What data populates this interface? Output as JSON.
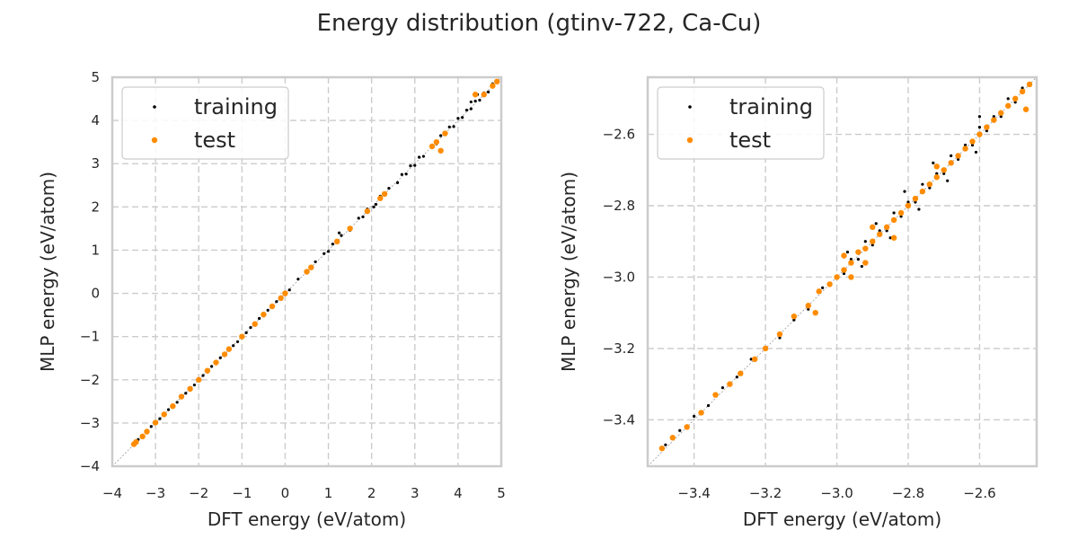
{
  "figure": {
    "title": "Energy distribution (gtinv-722, Ca-Cu)"
  },
  "chart_data": [
    {
      "type": "scatter",
      "xlabel": "DFT energy (eV/atom)",
      "ylabel": "MLP energy (eV/atom)",
      "xlim": [
        -4,
        5
      ],
      "ylim": [
        -4,
        5
      ],
      "xticks": [
        -4,
        -3,
        -2,
        -1,
        0,
        1,
        2,
        3,
        4,
        5
      ],
      "yticks": [
        -4,
        -3,
        -2,
        -1,
        0,
        1,
        2,
        3,
        4,
        5
      ],
      "xtick_labels": [
        "−4",
        "−3",
        "−2",
        "−1",
        "0",
        "1",
        "2",
        "3",
        "4",
        "5"
      ],
      "ytick_labels": [
        "−4",
        "−3",
        "−2",
        "−1",
        "0",
        "1",
        "2",
        "3",
        "4",
        "5"
      ],
      "grid": true,
      "diagonal_reference_line": true,
      "legend_position": "upper-left",
      "series": [
        {
          "name": "training",
          "color": "#000000",
          "points": [
            [
              -3.5,
              -3.48
            ],
            [
              -3.4,
              -3.38
            ],
            [
              -3.3,
              -3.29
            ],
            [
              -3.2,
              -3.19
            ],
            [
              -3.1,
              -3.08
            ],
            [
              -3.0,
              -3.0
            ],
            [
              -2.9,
              -2.9
            ],
            [
              -2.8,
              -2.81
            ],
            [
              -2.7,
              -2.69
            ],
            [
              -2.6,
              -2.6
            ],
            [
              -2.5,
              -2.52
            ],
            [
              -2.4,
              -2.38
            ],
            [
              -2.3,
              -2.31
            ],
            [
              -2.2,
              -2.19
            ],
            [
              -2.1,
              -2.12
            ],
            [
              -2.0,
              -1.98
            ],
            [
              -1.9,
              -1.9
            ],
            [
              -1.8,
              -1.82
            ],
            [
              -1.7,
              -1.69
            ],
            [
              -1.6,
              -1.61
            ],
            [
              -1.5,
              -1.49
            ],
            [
              -1.4,
              -1.42
            ],
            [
              -1.3,
              -1.29
            ],
            [
              -1.2,
              -1.21
            ],
            [
              -1.1,
              -1.12
            ],
            [
              -1.0,
              -0.98
            ],
            [
              -0.9,
              -0.91
            ],
            [
              -0.8,
              -0.79
            ],
            [
              -0.7,
              -0.72
            ],
            [
              -0.6,
              -0.58
            ],
            [
              -0.5,
              -0.52
            ],
            [
              -0.4,
              -0.39
            ],
            [
              -0.3,
              -0.31
            ],
            [
              -0.2,
              -0.19
            ],
            [
              -0.1,
              -0.12
            ],
            [
              0.0,
              0.02
            ],
            [
              0.1,
              0.08
            ],
            [
              0.3,
              0.33
            ],
            [
              0.5,
              0.48
            ],
            [
              0.7,
              0.73
            ],
            [
              0.9,
              0.92
            ],
            [
              1.0,
              0.97
            ],
            [
              1.1,
              1.14
            ],
            [
              1.2,
              1.17
            ],
            [
              1.3,
              1.34
            ],
            [
              1.5,
              1.46
            ],
            [
              1.7,
              1.74
            ],
            [
              1.8,
              1.77
            ],
            [
              1.9,
              1.95
            ],
            [
              2.1,
              2.06
            ],
            [
              2.2,
              2.25
            ],
            [
              2.3,
              2.27
            ],
            [
              2.4,
              2.43
            ],
            [
              2.6,
              2.56
            ],
            [
              2.7,
              2.75
            ],
            [
              2.8,
              2.76
            ],
            [
              2.9,
              2.95
            ],
            [
              3.0,
              2.96
            ],
            [
              3.1,
              3.15
            ],
            [
              3.2,
              3.17
            ],
            [
              3.4,
              3.43
            ],
            [
              3.5,
              3.46
            ],
            [
              3.6,
              3.65
            ],
            [
              3.7,
              3.67
            ],
            [
              3.8,
              3.85
            ],
            [
              3.9,
              3.86
            ],
            [
              4.0,
              4.05
            ],
            [
              4.1,
              4.07
            ],
            [
              4.2,
              4.24
            ],
            [
              4.3,
              4.27
            ],
            [
              4.4,
              4.45
            ],
            [
              4.5,
              4.47
            ],
            [
              4.6,
              4.64
            ],
            [
              4.7,
              4.66
            ],
            [
              4.8,
              4.85
            ],
            [
              4.9,
              4.88
            ],
            [
              4.45,
              4.6
            ],
            [
              4.3,
              4.43
            ],
            [
              2.05,
              2.0
            ],
            [
              1.25,
              1.4
            ]
          ]
        },
        {
          "name": "test",
          "color": "#ff8c00",
          "points": [
            [
              -3.5,
              -3.49
            ],
            [
              -3.45,
              -3.44
            ],
            [
              -3.3,
              -3.31
            ],
            [
              -3.2,
              -3.2
            ],
            [
              -3.0,
              -2.99
            ],
            [
              -2.8,
              -2.8
            ],
            [
              -2.6,
              -2.61
            ],
            [
              -2.4,
              -2.39
            ],
            [
              -2.2,
              -2.21
            ],
            [
              -2.0,
              -2.0
            ],
            [
              -1.8,
              -1.79
            ],
            [
              -1.6,
              -1.6
            ],
            [
              -1.4,
              -1.41
            ],
            [
              -1.3,
              -1.29
            ],
            [
              -1.0,
              -1.0
            ],
            [
              -0.7,
              -0.71
            ],
            [
              -0.5,
              -0.49
            ],
            [
              -0.3,
              -0.3
            ],
            [
              -0.1,
              -0.11
            ],
            [
              0.0,
              0.0
            ],
            [
              0.5,
              0.5
            ],
            [
              0.6,
              0.6
            ],
            [
              1.2,
              1.2
            ],
            [
              1.5,
              1.5
            ],
            [
              1.9,
              1.9
            ],
            [
              2.2,
              2.2
            ],
            [
              2.3,
              2.3
            ],
            [
              3.4,
              3.4
            ],
            [
              3.5,
              3.5
            ],
            [
              3.6,
              3.3
            ],
            [
              3.7,
              3.7
            ],
            [
              4.4,
              4.6
            ],
            [
              4.6,
              4.6
            ],
            [
              4.8,
              4.8
            ],
            [
              4.9,
              4.9
            ]
          ]
        }
      ]
    },
    {
      "type": "scatter",
      "xlabel": "DFT energy (eV/atom)",
      "ylabel": "MLP energy (eV/atom)",
      "xlim": [
        -3.53,
        -2.44
      ],
      "ylim": [
        -3.53,
        -2.44
      ],
      "xticks": [
        -3.4,
        -3.2,
        -3.0,
        -2.8,
        -2.6
      ],
      "yticks": [
        -3.4,
        -3.2,
        -3.0,
        -2.8,
        -2.6
      ],
      "xtick_labels": [
        "−3.4",
        "−3.2",
        "−3.0",
        "−2.8",
        "−2.6"
      ],
      "ytick_labels": [
        "−3.4",
        "−3.2",
        "−3.0",
        "−2.8",
        "−2.6"
      ],
      "grid": true,
      "diagonal_reference_line": true,
      "legend_position": "upper-left",
      "series": [
        {
          "name": "training",
          "color": "#000000",
          "points": [
            [
              -3.48,
              -3.47
            ],
            [
              -3.44,
              -3.43
            ],
            [
              -3.4,
              -3.39
            ],
            [
              -3.36,
              -3.36
            ],
            [
              -3.32,
              -3.31
            ],
            [
              -3.28,
              -3.28
            ],
            [
              -3.24,
              -3.23
            ],
            [
              -3.2,
              -3.2
            ],
            [
              -3.16,
              -3.17
            ],
            [
              -3.12,
              -3.12
            ],
            [
              -3.08,
              -3.09
            ],
            [
              -3.04,
              -3.03
            ],
            [
              -3.0,
              -3.0
            ],
            [
              -2.98,
              -2.99
            ],
            [
              -2.96,
              -2.95
            ],
            [
              -2.94,
              -2.95
            ],
            [
              -2.92,
              -2.9
            ],
            [
              -2.9,
              -2.91
            ],
            [
              -2.88,
              -2.87
            ],
            [
              -2.86,
              -2.87
            ],
            [
              -2.84,
              -2.82
            ],
            [
              -2.82,
              -2.83
            ],
            [
              -2.8,
              -2.79
            ],
            [
              -2.78,
              -2.79
            ],
            [
              -2.76,
              -2.74
            ],
            [
              -2.74,
              -2.75
            ],
            [
              -2.72,
              -2.71
            ],
            [
              -2.7,
              -2.71
            ],
            [
              -2.68,
              -2.66
            ],
            [
              -2.66,
              -2.67
            ],
            [
              -2.64,
              -2.63
            ],
            [
              -2.62,
              -2.63
            ],
            [
              -2.6,
              -2.58
            ],
            [
              -2.58,
              -2.59
            ],
            [
              -2.56,
              -2.55
            ],
            [
              -2.54,
              -2.55
            ],
            [
              -2.52,
              -2.5
            ],
            [
              -2.5,
              -2.51
            ],
            [
              -2.48,
              -2.47
            ],
            [
              -2.46,
              -2.46
            ],
            [
              -2.93,
              -2.97
            ],
            [
              -2.85,
              -2.89
            ],
            [
              -2.77,
              -2.81
            ],
            [
              -2.69,
              -2.73
            ],
            [
              -2.61,
              -2.65
            ],
            [
              -2.97,
              -2.93
            ],
            [
              -2.89,
              -2.85
            ],
            [
              -2.81,
              -2.76
            ],
            [
              -2.73,
              -2.68
            ],
            [
              -2.6,
              -2.55
            ]
          ]
        },
        {
          "name": "test",
          "color": "#ff8c00",
          "points": [
            [
              -3.49,
              -3.48
            ],
            [
              -3.46,
              -3.45
            ],
            [
              -3.42,
              -3.42
            ],
            [
              -3.38,
              -3.38
            ],
            [
              -3.34,
              -3.33
            ],
            [
              -3.3,
              -3.3
            ],
            [
              -3.27,
              -3.27
            ],
            [
              -3.23,
              -3.23
            ],
            [
              -3.2,
              -3.2
            ],
            [
              -3.16,
              -3.16
            ],
            [
              -3.12,
              -3.11
            ],
            [
              -3.08,
              -3.08
            ],
            [
              -3.05,
              -3.04
            ],
            [
              -3.02,
              -3.02
            ],
            [
              -3.0,
              -3.0
            ],
            [
              -2.98,
              -2.98
            ],
            [
              -2.96,
              -2.96
            ],
            [
              -2.94,
              -2.93
            ],
            [
              -2.92,
              -2.92
            ],
            [
              -2.9,
              -2.9
            ],
            [
              -2.88,
              -2.88
            ],
            [
              -2.86,
              -2.86
            ],
            [
              -2.84,
              -2.84
            ],
            [
              -2.82,
              -2.82
            ],
            [
              -2.8,
              -2.8
            ],
            [
              -2.78,
              -2.78
            ],
            [
              -2.76,
              -2.76
            ],
            [
              -2.74,
              -2.74
            ],
            [
              -2.72,
              -2.72
            ],
            [
              -2.7,
              -2.7
            ],
            [
              -2.68,
              -2.68
            ],
            [
              -2.66,
              -2.66
            ],
            [
              -2.64,
              -2.64
            ],
            [
              -2.62,
              -2.62
            ],
            [
              -2.6,
              -2.6
            ],
            [
              -2.58,
              -2.58
            ],
            [
              -2.56,
              -2.56
            ],
            [
              -2.54,
              -2.54
            ],
            [
              -2.52,
              -2.52
            ],
            [
              -2.5,
              -2.5
            ],
            [
              -2.48,
              -2.48
            ],
            [
              -2.46,
              -2.46
            ],
            [
              -3.06,
              -3.1
            ],
            [
              -2.96,
              -3.0
            ],
            [
              -2.92,
              -2.96
            ],
            [
              -2.84,
              -2.89
            ],
            [
              -2.98,
              -2.94
            ],
            [
              -2.9,
              -2.86
            ],
            [
              -2.72,
              -2.69
            ],
            [
              -2.47,
              -2.53
            ]
          ]
        }
      ]
    }
  ]
}
